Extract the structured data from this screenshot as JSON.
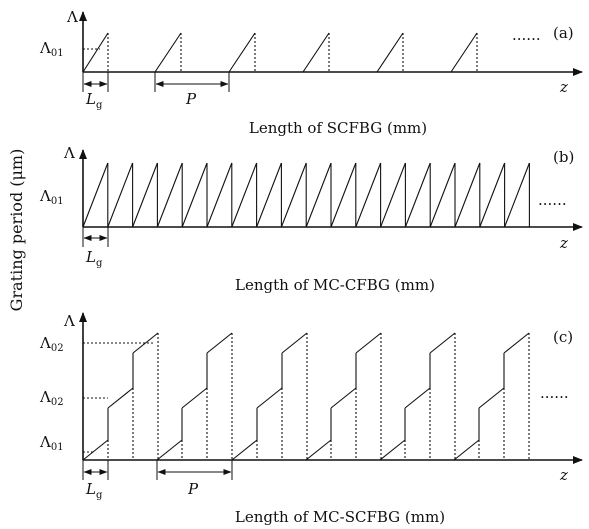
{
  "y_axis_label": "Grating period (μm)",
  "axis": {
    "lambda": "Λ",
    "z": "z"
  },
  "panels": [
    {
      "tag": "(a)",
      "levels": [
        {
          "main": "Λ",
          "sub": "01"
        }
      ],
      "length_label": {
        "main": "L",
        "sub": "g"
      },
      "period_label": "P",
      "ellipsis": "......",
      "caption": "Length of SCFBG (mm)"
    },
    {
      "tag": "(b)",
      "levels": [
        {
          "main": "Λ",
          "sub": "01"
        }
      ],
      "length_label": {
        "main": "L",
        "sub": "g"
      },
      "ellipsis": "......",
      "caption": "Length of MC-CFBG (mm)"
    },
    {
      "tag": "(c)",
      "levels": [
        {
          "main": "Λ",
          "sub": "02"
        },
        {
          "main": "Λ",
          "sub": "02"
        },
        {
          "main": "Λ",
          "sub": "01"
        }
      ],
      "length_label": {
        "main": "L",
        "sub": "g"
      },
      "period_label": "P",
      "ellipsis": "......",
      "caption": "Length of MC-SCFBG (mm)"
    }
  ]
}
